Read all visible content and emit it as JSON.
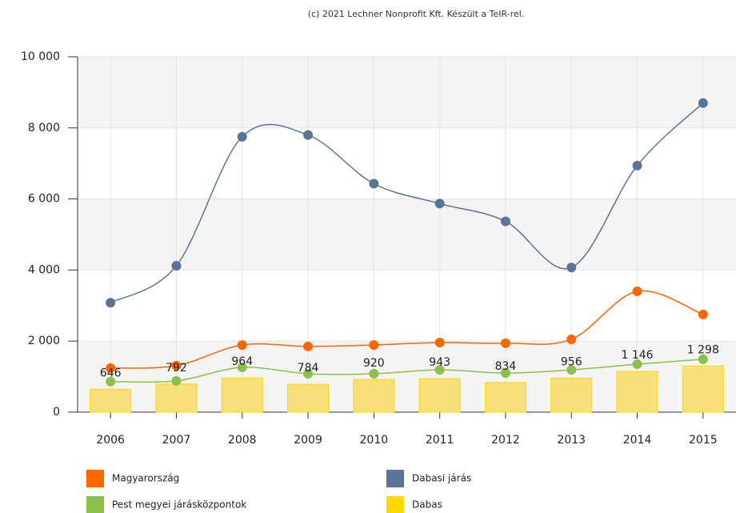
{
  "chart_data": {
    "type": "combo",
    "title": "(c) 2021 Lechner Nonprofit Kft. Készült a TeIR-rel.",
    "categories": [
      "2006",
      "2007",
      "2008",
      "2009",
      "2010",
      "2011",
      "2012",
      "2013",
      "2014",
      "2015"
    ],
    "ylim": [
      0,
      10000
    ],
    "yticks": [
      0,
      {
        "value": 2000,
        "label": "2 000"
      },
      {
        "value": 4000,
        "label": "4 000"
      },
      {
        "value": 6000,
        "label": "6 000"
      },
      {
        "value": 8000,
        "label": "8 000"
      },
      {
        "value": 10000,
        "label": "10 000"
      }
    ],
    "grid": true,
    "series": [
      {
        "name": "Magyarország",
        "type": "line",
        "color": "#ff6600",
        "values": [
          1240,
          1310,
          1890,
          1850,
          1890,
          1960,
          1940,
          2050,
          3400,
          2750
        ]
      },
      {
        "name": "Dabasi járás",
        "type": "line",
        "color": "#5b7396",
        "values": [
          3080,
          4120,
          7750,
          7800,
          6430,
          5870,
          5370,
          4070,
          6940,
          8700
        ]
      },
      {
        "name": "Pest megyei járásközpontok",
        "type": "line",
        "color": "#8cc04a",
        "values": [
          860,
          880,
          1260,
          1080,
          1080,
          1190,
          1100,
          1190,
          1350,
          1490
        ]
      },
      {
        "name": "Dabas",
        "type": "bar",
        "color": "#ffd700",
        "values": [
          646,
          792,
          964,
          784,
          920,
          943,
          834,
          956,
          1146,
          1298
        ],
        "value_labels": [
          "646",
          "792",
          "964",
          "784",
          "920",
          "943",
          "834",
          "956",
          "1 146",
          "1 298"
        ]
      }
    ]
  }
}
